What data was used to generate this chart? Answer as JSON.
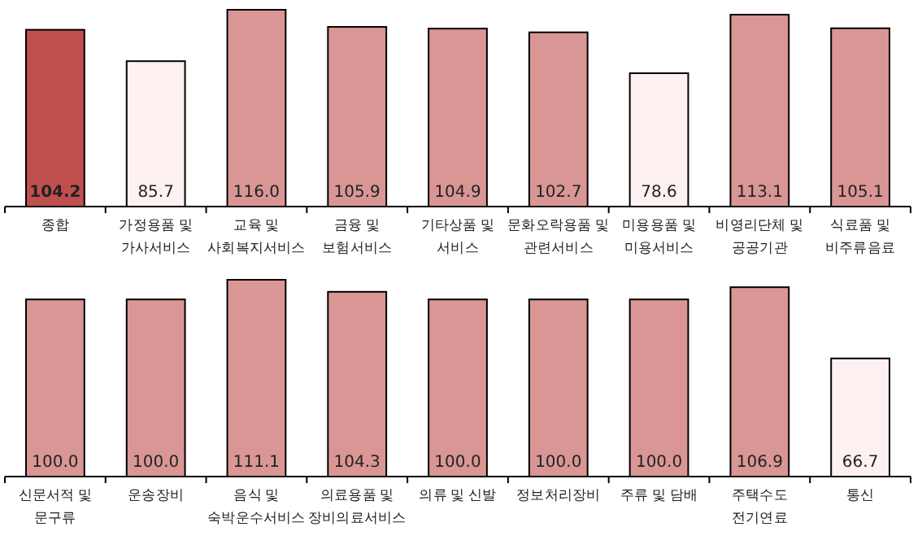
{
  "chart_data": [
    {
      "type": "bar",
      "categories": [
        "종합",
        "가정용품 및\n가사서비스",
        "교육 및\n사회복지서비스",
        "금융 및\n보험서비스",
        "기타상품 및\n서비스",
        "문화오락용품 및\n관련서비스",
        "미용용품 및\n미용서비스",
        "비영리단체 및\n공공기관",
        "식료품 및\n비주류음료"
      ],
      "values": [
        104.2,
        85.7,
        116.0,
        105.9,
        104.9,
        102.7,
        78.6,
        113.1,
        105.1
      ],
      "colors": [
        "#c0504d",
        "#fdf1f1",
        "#d99694",
        "#d99694",
        "#d99694",
        "#d99694",
        "#fdf1f1",
        "#d99694",
        "#d99694"
      ],
      "value_labels": [
        "104.2",
        "85.7",
        "116.0",
        "105.9",
        "104.9",
        "102.7",
        "78.6",
        "113.1",
        "105.1"
      ]
    },
    {
      "type": "bar",
      "categories": [
        "신문서적 및\n문구류",
        "운송장비",
        "음식 및\n숙박운수서비스",
        "의료용품 및\n장비의료서비스",
        "의류 및 신발",
        "정보처리장비",
        "주류 및 담배",
        "주택수도\n전기연료",
        "통신"
      ],
      "values": [
        100.0,
        100.0,
        111.1,
        104.3,
        100.0,
        100.0,
        100.0,
        106.9,
        66.7
      ],
      "colors": [
        "#d99694",
        "#d99694",
        "#d99694",
        "#d99694",
        "#d99694",
        "#d99694",
        "#d99694",
        "#d99694",
        "#fdf1f1"
      ],
      "value_labels": [
        "100.0",
        "100.0",
        "111.1",
        "104.3",
        "100.0",
        "100.0",
        "100.0",
        "106.9",
        "66.7"
      ]
    }
  ]
}
